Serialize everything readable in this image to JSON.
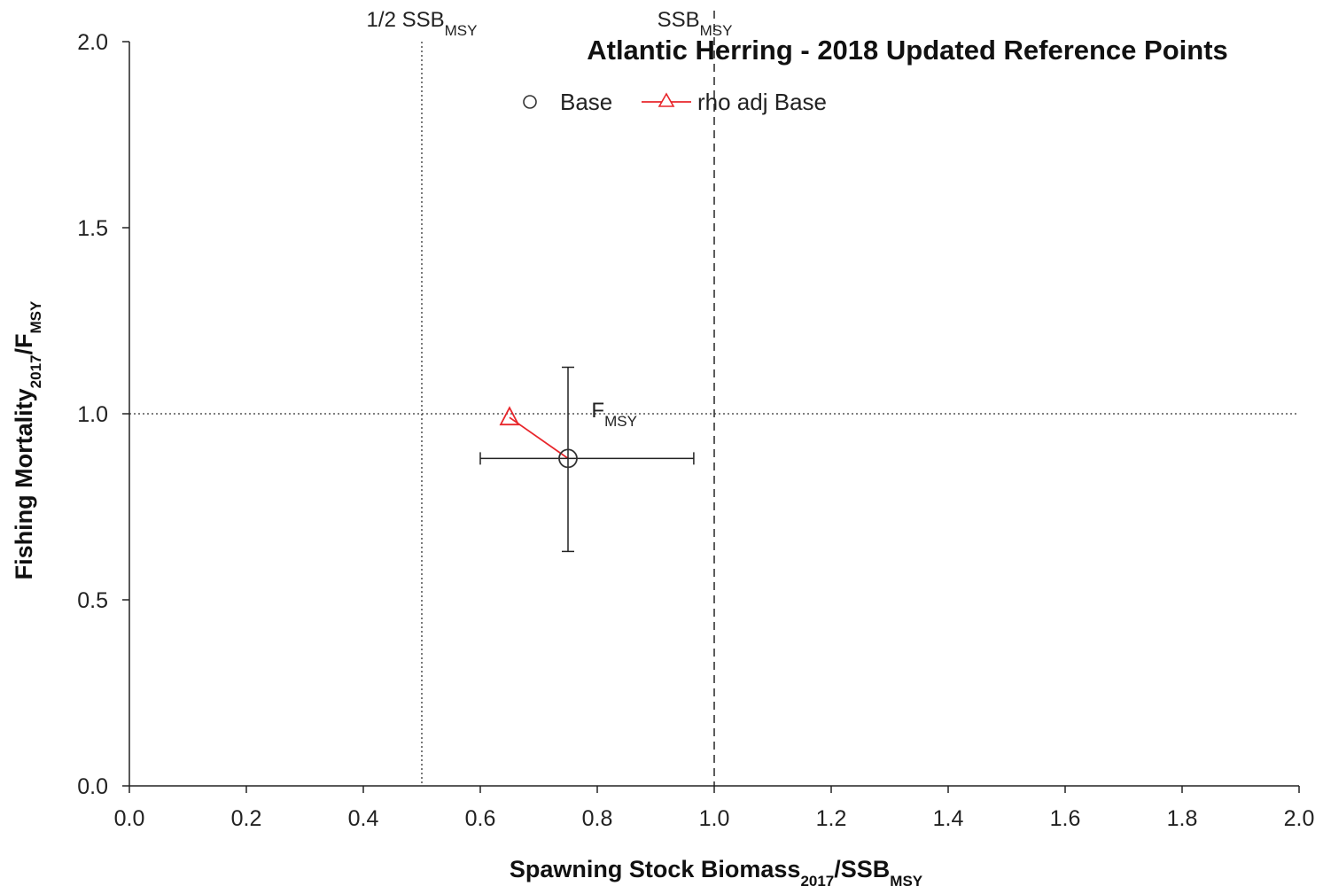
{
  "chart_data": {
    "type": "scatter",
    "title": "Atlantic Herring - 2018 Updated Reference Points",
    "xlabel": {
      "main": "Spawning Stock Biomass",
      "sub1": "2017",
      "mid": "/SSB",
      "sub2": "MSY"
    },
    "ylabel": {
      "main": "Fishing Mortality",
      "sub1": "2017",
      "mid": "/F",
      "sub2": "MSY"
    },
    "xlim": [
      0,
      2
    ],
    "ylim": [
      0,
      2
    ],
    "x_ticks": [
      "0.0",
      "0.2",
      "0.4",
      "0.6",
      "0.8",
      "1.0",
      "1.2",
      "1.4",
      "1.6",
      "1.8",
      "2.0"
    ],
    "y_ticks": [
      "0.0",
      "0.5",
      "1.0",
      "1.5",
      "2.0"
    ],
    "grid": false,
    "legend_position": "top-center",
    "reference_lines": {
      "half_ssb": {
        "x": 0.5,
        "label_main": "1/2 SSB",
        "label_sub": "MSY",
        "style": "dotted"
      },
      "ssb": {
        "x": 1.0,
        "label_main": "SSB",
        "label_sub": "MSY",
        "style": "dashed"
      },
      "fmsy": {
        "y": 1.0,
        "label_main": "F",
        "label_sub": "MSY",
        "style": "dotted"
      }
    },
    "series": [
      {
        "name": "Base",
        "marker": "circle",
        "color": "#333333",
        "x": 0.75,
        "y": 0.88,
        "x_error": [
          0.6,
          0.965
        ],
        "y_error": [
          0.63,
          1.125
        ]
      },
      {
        "name": "rho adj Base",
        "marker": "triangle",
        "color": "#e8262b",
        "x": 0.65,
        "y": 0.99,
        "connects_to": "Base"
      }
    ]
  }
}
